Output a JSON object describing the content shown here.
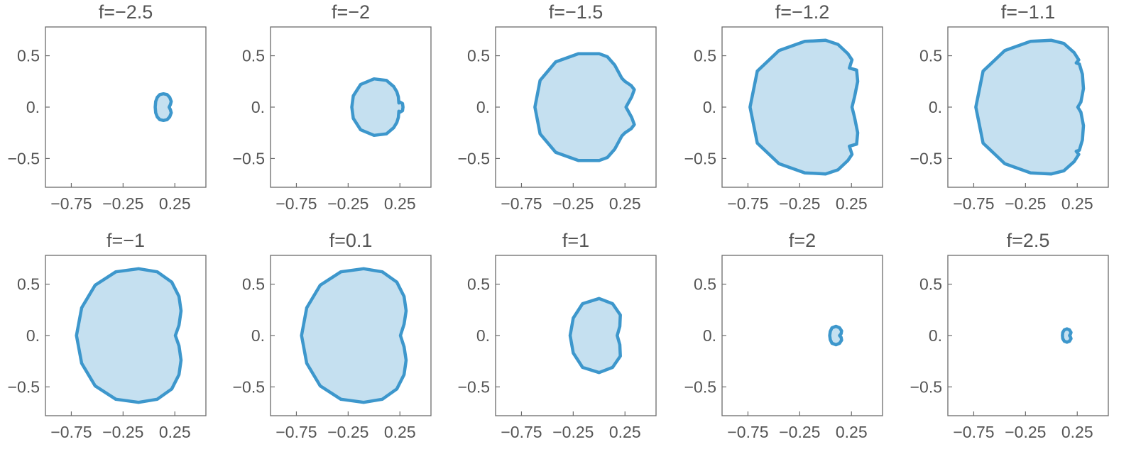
{
  "chart_data": {
    "type": "polar-region-grid",
    "x_ticks": [
      {
        "value": -0.75,
        "label": "−0.75"
      },
      {
        "value": -0.25,
        "label": "−0.25"
      },
      {
        "value": 0.25,
        "label": "0.25"
      }
    ],
    "y_ticks": [
      {
        "value": 0.5,
        "label": "0.5"
      },
      {
        "value": 0.0,
        "label": "0."
      },
      {
        "value": -0.5,
        "label": "−0.5"
      }
    ],
    "xlim": [
      -1.0,
      0.55
    ],
    "ylim": [
      -0.78,
      0.78
    ],
    "colors": {
      "fill": "#c5e0f0",
      "stroke": "#3d97cc"
    },
    "panels": [
      {
        "title": "f=−2.5",
        "f": -2.5
      },
      {
        "title": "f=−2",
        "f": -2
      },
      {
        "title": "f=−1.5",
        "f": -1.5
      },
      {
        "title": "f=−1.2",
        "f": -1.2
      },
      {
        "title": "f=−1.1",
        "f": -1.1
      },
      {
        "title": "f=−1",
        "f": -1
      },
      {
        "title": "f=0.1",
        "f": 0.1
      },
      {
        "title": "f=1",
        "f": 1
      },
      {
        "title": "f=2",
        "f": 2
      },
      {
        "title": "f=2.5",
        "f": 2.5
      }
    ]
  }
}
